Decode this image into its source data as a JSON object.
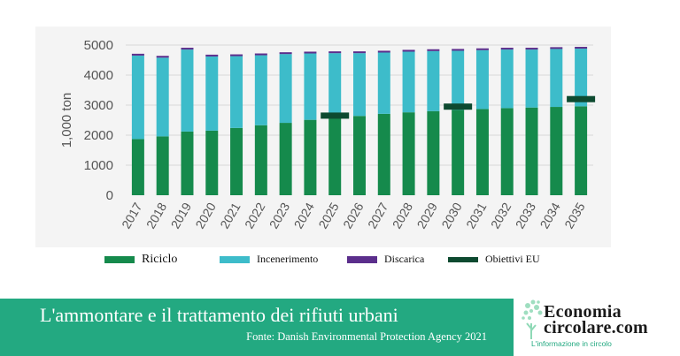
{
  "chart_data": {
    "type": "bar",
    "stacked": true,
    "categories": [
      "2017",
      "2018",
      "2019",
      "2020",
      "2021",
      "2022",
      "2023",
      "2024",
      "2025",
      "2026",
      "2027",
      "2028",
      "2029",
      "2030",
      "2031",
      "2032",
      "2033",
      "2034",
      "2035"
    ],
    "series": [
      {
        "name": "Riciclo",
        "color": "#158a4c",
        "values": [
          1870,
          1960,
          2120,
          2150,
          2240,
          2330,
          2410,
          2510,
          2580,
          2640,
          2710,
          2760,
          2800,
          2840,
          2870,
          2900,
          2920,
          2940,
          2960
        ]
      },
      {
        "name": "Incenerimento",
        "color": "#3dbcca",
        "values": [
          2780,
          2620,
          2730,
          2470,
          2390,
          2330,
          2290,
          2210,
          2150,
          2090,
          2040,
          2020,
          2000,
          1970,
          1960,
          1950,
          1930,
          1930,
          1920
        ]
      },
      {
        "name": "Discarica",
        "color": "#5b2e8c",
        "values": [
          60,
          60,
          60,
          60,
          60,
          60,
          60,
          60,
          60,
          60,
          60,
          60,
          60,
          60,
          60,
          60,
          60,
          60,
          60
        ]
      }
    ],
    "targets": {
      "name": "Obiettivi EU",
      "color": "#0d4a30",
      "points": [
        {
          "x": "2025",
          "y": 2650
        },
        {
          "x": "2030",
          "y": 2950
        },
        {
          "x": "2035",
          "y": 3200
        }
      ]
    },
    "ylabel": "1,000 ton",
    "ylim": [
      0,
      5000
    ],
    "yticks": [
      "0",
      "1000",
      "2000",
      "3000",
      "4000",
      "5000"
    ],
    "grid": true,
    "legend_position": "bottom"
  },
  "legend": [
    {
      "label": "Riciclo",
      "color": "#158a4c"
    },
    {
      "label": "Incenerimento",
      "color": "#3dbcca"
    },
    {
      "label": "Discarica",
      "color": "#5b2e8c"
    },
    {
      "label": "Obiettivi EU",
      "color": "#0d4a30"
    }
  ],
  "footer": {
    "title": "L'ammontare e il trattamento dei rifiuti urbani",
    "source": "Fonte: Danish Environmental Protection Agency 2021"
  },
  "logo": {
    "line1": "Economia",
    "line2": "circolare.com",
    "tagline": "L'informazione in circolo"
  }
}
